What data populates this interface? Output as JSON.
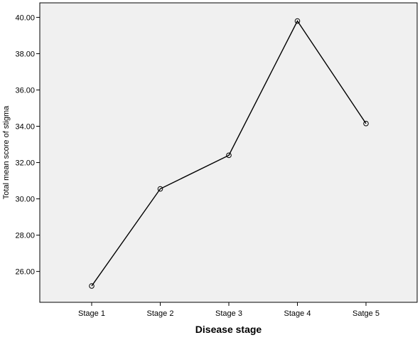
{
  "chart_data": {
    "type": "line",
    "title": "",
    "xlabel": "Disease stage",
    "ylabel": "Total mean score of stigma",
    "categories": [
      "Stage 1",
      "Stage 2",
      "Stage 3",
      "Stage 4",
      "Satge 5"
    ],
    "series": [
      {
        "values": [
          25.2,
          30.55,
          32.4,
          39.8,
          34.15
        ]
      }
    ],
    "ylim": [
      24.3,
      40.8
    ],
    "yticks": [
      "26.00",
      "28.00",
      "30.00",
      "32.00",
      "34.00",
      "36.00",
      "38.00",
      "40.00"
    ],
    "grid": false,
    "marker": "open-circle",
    "colors": {
      "plot_background": "#f0f0f0",
      "line": "#000000",
      "axis": "#000000"
    }
  }
}
